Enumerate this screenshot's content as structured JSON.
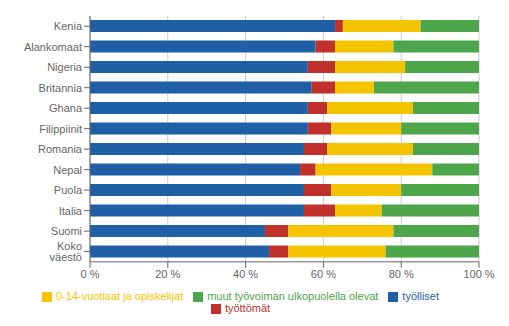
{
  "chart_data": {
    "type": "bar",
    "orientation": "horizontal",
    "stacked": true,
    "categories": [
      "Kenia",
      "Alankomaat",
      "Nigeria",
      "Britannia",
      "Ghana",
      "Filippiinit",
      "Romania",
      "Nepal",
      "Puola",
      "Italia",
      "Suomi",
      "Koko väestö"
    ],
    "series": [
      {
        "name": "työlliset",
        "color": "#1F5FA6",
        "values": [
          63,
          58,
          56,
          57,
          56,
          56,
          55,
          54,
          55,
          55,
          45,
          46
        ]
      },
      {
        "name": "työttömät",
        "color": "#C0312B",
        "values": [
          2,
          5,
          7,
          6,
          5,
          6,
          6,
          4,
          7,
          8,
          6,
          5
        ]
      },
      {
        "name": "0-14-vuotiaat ja opiskelijat",
        "color": "#F5C400",
        "values": [
          20,
          15,
          18,
          10,
          22,
          18,
          22,
          30,
          18,
          12,
          27,
          25
        ]
      },
      {
        "name": "muut työvoiman ulkopuolella olevat",
        "color": "#4EA64A",
        "values": [
          15,
          22,
          19,
          27,
          17,
          20,
          17,
          12,
          20,
          25,
          22,
          24
        ]
      }
    ],
    "xlim": [
      0,
      100
    ],
    "xticks": [
      {
        "value": 0,
        "label": "0 %"
      },
      {
        "value": 20,
        "label": "20 %"
      },
      {
        "value": 40,
        "label": "40 %"
      },
      {
        "value": 60,
        "label": "60 %"
      },
      {
        "value": 80,
        "label": "80 %"
      },
      {
        "value": 100,
        "label": "100 %"
      }
    ],
    "grid": true,
    "legend": "bottom"
  }
}
